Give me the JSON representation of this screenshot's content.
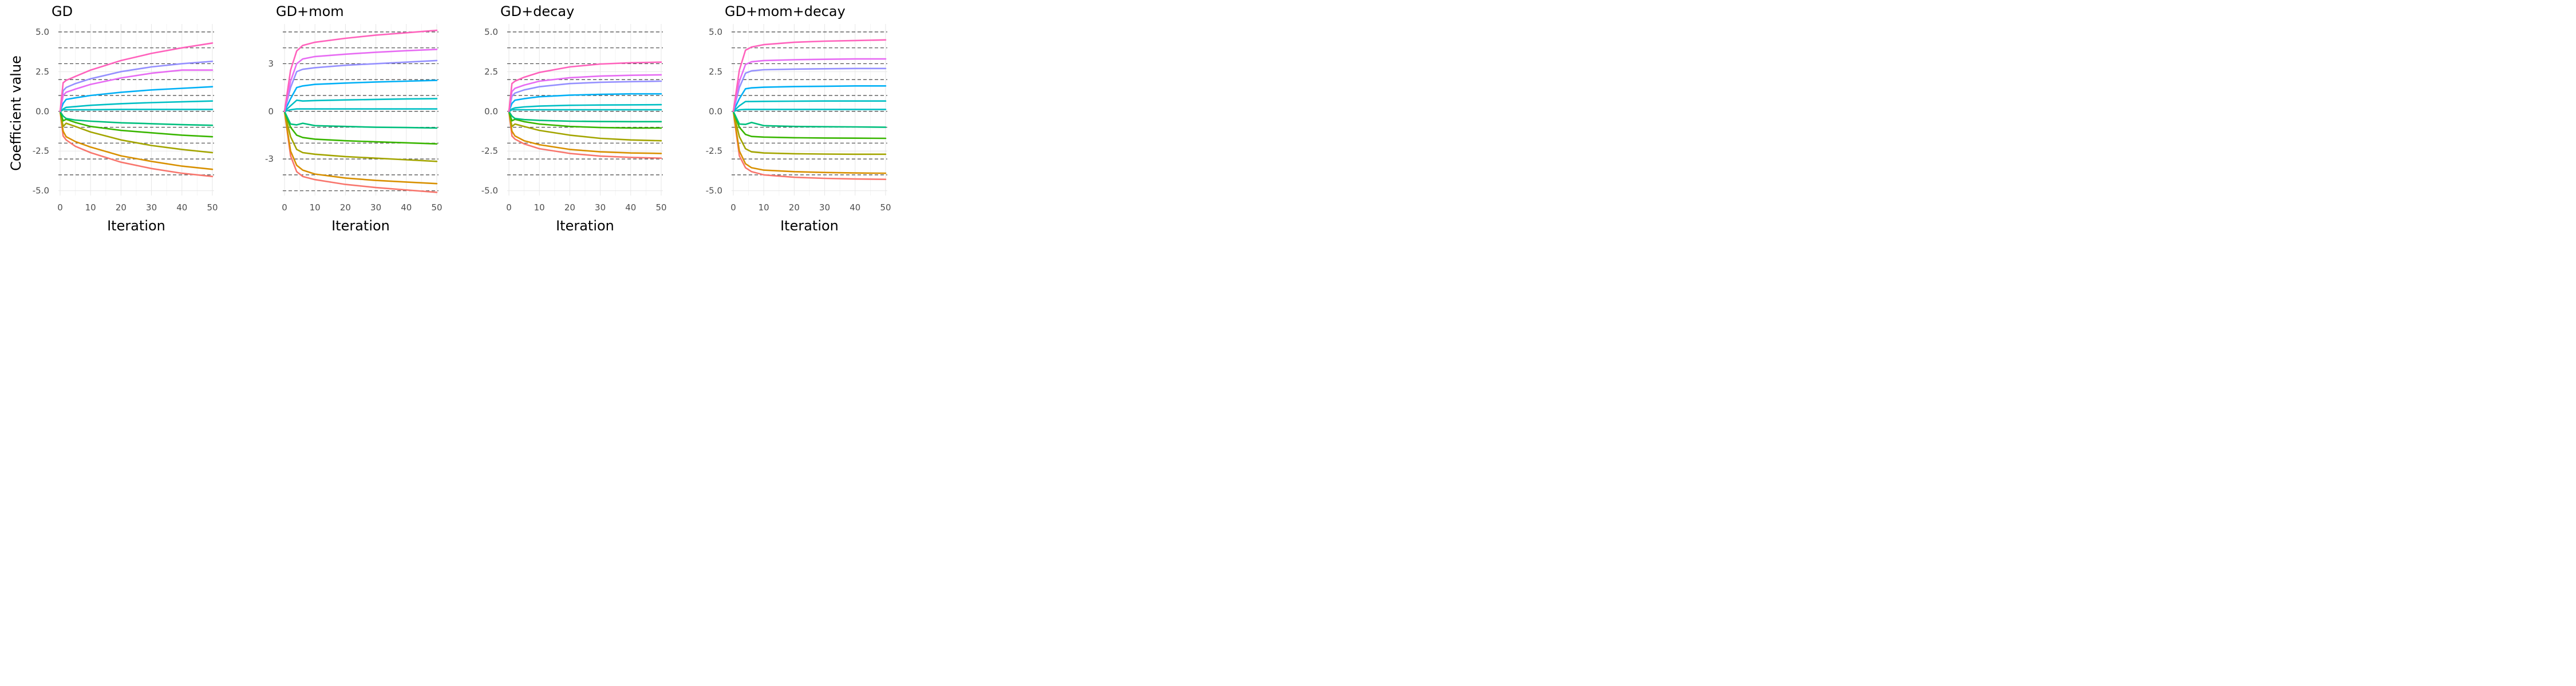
{
  "figure": {
    "ylabel": "Coefficient value",
    "xlabel": "Iteration"
  },
  "colors": [
    "#F8766D",
    "#D89000",
    "#A3A500",
    "#39B600",
    "#00BF7D",
    "#00BFC4",
    "#00B0F6",
    "#9590FF",
    "#E76BF3",
    "#FF62BC"
  ],
  "chart_data": [
    {
      "type": "line",
      "title": "GD",
      "xlabel": "Iteration",
      "ylabel": "Coefficient value",
      "xlim": [
        0,
        50
      ],
      "ylim": [
        -5.3,
        5.5
      ],
      "xticks": [
        0,
        10,
        20,
        30,
        40,
        50
      ],
      "yticks": [
        -5.0,
        -2.5,
        0.0,
        2.5,
        5.0
      ],
      "ytick_labels": [
        "-5.0",
        "-2.5",
        "0.0",
        "2.5",
        "5.0"
      ],
      "grid": true,
      "reference_lines": [
        -4,
        -3,
        -2,
        -1,
        0,
        1,
        2,
        3,
        4,
        5
      ],
      "series": [
        {
          "x": [
            0,
            1,
            2,
            5,
            10,
            20,
            30,
            40,
            50
          ],
          "values": [
            0,
            -1.55,
            -1.8,
            -2.2,
            -2.6,
            -3.2,
            -3.6,
            -3.9,
            -4.1
          ]
        },
        {
          "x": [
            0,
            1,
            2,
            5,
            10,
            20,
            30,
            40,
            50
          ],
          "values": [
            0,
            -1.25,
            -1.6,
            -1.9,
            -2.25,
            -2.8,
            -3.15,
            -3.45,
            -3.65
          ]
        },
        {
          "x": [
            0,
            1,
            2,
            5,
            10,
            20,
            30,
            40,
            50
          ],
          "values": [
            0,
            -0.95,
            -0.75,
            -0.95,
            -1.3,
            -1.8,
            -2.15,
            -2.4,
            -2.6
          ]
        },
        {
          "x": [
            0,
            1,
            2,
            5,
            10,
            20,
            30,
            40,
            50
          ],
          "values": [
            0,
            -0.6,
            -0.5,
            -0.7,
            -0.95,
            -1.2,
            -1.35,
            -1.5,
            -1.6
          ]
        },
        {
          "x": [
            0,
            1,
            2,
            5,
            10,
            20,
            30,
            40,
            50
          ],
          "values": [
            0,
            -0.3,
            -0.45,
            -0.55,
            -0.62,
            -0.72,
            -0.78,
            -0.84,
            -0.88
          ]
        },
        {
          "x": [
            0,
            1,
            2,
            5,
            10,
            20,
            30,
            40,
            50
          ],
          "values": [
            0,
            0.1,
            0.1,
            0.1,
            0.1,
            0.12,
            0.12,
            0.12,
            0.12
          ]
        },
        {
          "x": [
            0,
            1,
            2,
            5,
            10,
            20,
            30,
            40,
            50
          ],
          "values": [
            0,
            0.15,
            0.25,
            0.3,
            0.38,
            0.48,
            0.55,
            0.6,
            0.65
          ]
        },
        {
          "x": [
            0,
            1,
            2,
            5,
            10,
            20,
            30,
            40,
            50
          ],
          "values": [
            0,
            0.5,
            0.75,
            0.85,
            1.0,
            1.2,
            1.35,
            1.45,
            1.55
          ]
        },
        {
          "x": [
            0,
            1,
            2,
            5,
            10,
            20,
            30,
            40,
            50
          ],
          "values": [
            0,
            1.0,
            1.2,
            1.4,
            1.7,
            2.1,
            2.4,
            2.6,
            2.6
          ]
        },
        {
          "x": [
            0,
            1,
            2,
            5,
            10,
            20,
            30,
            40,
            50
          ],
          "values": [
            0,
            1.8,
            1.95,
            2.2,
            2.6,
            3.2,
            3.65,
            4.0,
            4.3
          ]
        }
      ],
      "series_extra": {
        "8": {
          "x": [
            0,
            1,
            2,
            5,
            10,
            20,
            30,
            40,
            50
          ],
          "values": [
            0,
            1.3,
            1.5,
            1.75,
            2.05,
            2.5,
            2.8,
            3.0,
            3.15
          ]
        }
      }
    },
    {
      "type": "line",
      "title": "GD+mom",
      "xlabel": "Iteration",
      "ylabel": "",
      "xlim": [
        0,
        50
      ],
      "ylim": [
        -5.3,
        5.5
      ],
      "xticks": [
        0,
        10,
        20,
        30,
        40,
        50
      ],
      "yticks": [
        -3,
        0,
        3
      ],
      "ytick_labels": [
        "-3",
        "0",
        "3"
      ],
      "grid": true,
      "reference_lines": [
        -5,
        -4,
        -3,
        -2,
        -1,
        0,
        1,
        2,
        3,
        4,
        5
      ],
      "series": [
        {
          "x": [
            0,
            2,
            4,
            6,
            10,
            20,
            30,
            40,
            50
          ],
          "values": [
            0,
            -2.8,
            -3.8,
            -4.1,
            -4.3,
            -4.6,
            -4.8,
            -4.95,
            -5.1
          ]
        },
        {
          "x": [
            0,
            2,
            4,
            6,
            10,
            20,
            30,
            40,
            50
          ],
          "values": [
            0,
            -2.5,
            -3.4,
            -3.7,
            -3.95,
            -4.2,
            -4.35,
            -4.45,
            -4.55
          ]
        },
        {
          "x": [
            0,
            2,
            4,
            6,
            10,
            20,
            30,
            40,
            50
          ],
          "values": [
            0,
            -1.6,
            -2.4,
            -2.6,
            -2.7,
            -2.85,
            -2.95,
            -3.05,
            -3.15
          ]
        },
        {
          "x": [
            0,
            2,
            4,
            6,
            10,
            20,
            30,
            40,
            50
          ],
          "values": [
            0,
            -1.0,
            -1.5,
            -1.65,
            -1.75,
            -1.85,
            -1.92,
            -1.98,
            -2.05
          ]
        },
        {
          "x": [
            0,
            2,
            4,
            6,
            10,
            20,
            30,
            40,
            50
          ],
          "values": [
            0,
            -0.8,
            -0.85,
            -0.75,
            -0.9,
            -0.95,
            -1.0,
            -1.02,
            -1.05
          ]
        },
        {
          "x": [
            0,
            2,
            4,
            6,
            10,
            20,
            30,
            40,
            50
          ],
          "values": [
            0,
            0.1,
            0.15,
            0.15,
            0.15,
            0.15,
            0.15,
            0.15,
            0.15
          ]
        },
        {
          "x": [
            0,
            2,
            4,
            6,
            10,
            20,
            30,
            40,
            50
          ],
          "values": [
            0,
            0.35,
            0.7,
            0.65,
            0.68,
            0.72,
            0.75,
            0.78,
            0.8
          ]
        },
        {
          "x": [
            0,
            2,
            4,
            6,
            10,
            20,
            30,
            40,
            50
          ],
          "values": [
            0,
            0.8,
            1.5,
            1.6,
            1.7,
            1.78,
            1.85,
            1.9,
            1.95
          ]
        },
        {
          "x": [
            0,
            2,
            4,
            6,
            10,
            20,
            30,
            40,
            50
          ],
          "values": [
            0,
            1.5,
            2.5,
            2.65,
            2.75,
            2.9,
            3.0,
            3.1,
            3.2
          ]
        },
        {
          "x": [
            0,
            2,
            4,
            6,
            10,
            20,
            30,
            40,
            50
          ],
          "values": [
            0,
            1.9,
            3.0,
            3.3,
            3.45,
            3.6,
            3.72,
            3.82,
            3.9
          ]
        },
        {
          "x": [
            0,
            2,
            4,
            6,
            10,
            20,
            30,
            40,
            50
          ],
          "values": [
            0,
            2.6,
            3.8,
            4.15,
            4.35,
            4.6,
            4.8,
            4.95,
            5.1
          ]
        }
      ]
    },
    {
      "type": "line",
      "title": "GD+decay",
      "xlabel": "Iteration",
      "ylabel": "",
      "xlim": [
        0,
        50
      ],
      "ylim": [
        -5.3,
        5.5
      ],
      "xticks": [
        0,
        10,
        20,
        30,
        40,
        50
      ],
      "yticks": [
        -5.0,
        -2.5,
        0.0,
        2.5,
        5.0
      ],
      "ytick_labels": [
        "-5.0",
        "-2.5",
        "0.0",
        "2.5",
        "5.0"
      ],
      "grid": true,
      "reference_lines": [
        -4,
        -3,
        -2,
        -1,
        0,
        1,
        2,
        3,
        4,
        5
      ],
      "series": [
        {
          "x": [
            0,
            1,
            2,
            5,
            10,
            20,
            30,
            40,
            50
          ],
          "values": [
            0,
            -1.55,
            -1.75,
            -2.05,
            -2.35,
            -2.65,
            -2.82,
            -2.9,
            -2.95
          ]
        },
        {
          "x": [
            0,
            1,
            2,
            5,
            10,
            20,
            30,
            40,
            50
          ],
          "values": [
            0,
            -1.25,
            -1.55,
            -1.85,
            -2.1,
            -2.4,
            -2.55,
            -2.62,
            -2.65
          ]
        },
        {
          "x": [
            0,
            1,
            2,
            5,
            10,
            20,
            30,
            40,
            50
          ],
          "values": [
            0,
            -0.95,
            -0.8,
            -0.95,
            -1.2,
            -1.5,
            -1.7,
            -1.8,
            -1.85
          ]
        },
        {
          "x": [
            0,
            1,
            2,
            5,
            10,
            20,
            30,
            40,
            50
          ],
          "values": [
            0,
            -0.6,
            -0.5,
            -0.65,
            -0.8,
            -0.95,
            -1.02,
            -1.05,
            -1.05
          ]
        },
        {
          "x": [
            0,
            1,
            2,
            5,
            10,
            20,
            30,
            40,
            50
          ],
          "values": [
            0,
            -0.3,
            -0.45,
            -0.52,
            -0.57,
            -0.62,
            -0.64,
            -0.65,
            -0.65
          ]
        },
        {
          "x": [
            0,
            1,
            2,
            5,
            10,
            20,
            30,
            40,
            50
          ],
          "values": [
            0,
            0.1,
            0.1,
            0.1,
            0.1,
            0.1,
            0.1,
            0.1,
            0.1
          ]
        },
        {
          "x": [
            0,
            1,
            2,
            5,
            10,
            20,
            30,
            40,
            50
          ],
          "values": [
            0,
            0.15,
            0.22,
            0.28,
            0.33,
            0.38,
            0.4,
            0.41,
            0.42
          ]
        },
        {
          "x": [
            0,
            1,
            2,
            5,
            10,
            20,
            30,
            40,
            50
          ],
          "values": [
            0,
            0.5,
            0.7,
            0.8,
            0.92,
            1.02,
            1.07,
            1.1,
            1.1
          ]
        },
        {
          "x": [
            0,
            1,
            2,
            5,
            10,
            20,
            30,
            40,
            50
          ],
          "values": [
            0,
            0.95,
            1.15,
            1.35,
            1.55,
            1.75,
            1.83,
            1.87,
            1.9
          ]
        },
        {
          "x": [
            0,
            1,
            2,
            5,
            10,
            20,
            30,
            40,
            50
          ],
          "values": [
            0,
            1.25,
            1.45,
            1.65,
            1.9,
            2.12,
            2.22,
            2.27,
            2.3
          ]
        },
        {
          "x": [
            0,
            1,
            2,
            5,
            10,
            20,
            30,
            40,
            50
          ],
          "values": [
            0,
            1.75,
            1.9,
            2.15,
            2.45,
            2.8,
            2.98,
            3.06,
            3.1
          ]
        }
      ]
    },
    {
      "type": "line",
      "title": "GD+mom+decay",
      "xlabel": "Iteration",
      "ylabel": "",
      "xlim": [
        0,
        50
      ],
      "ylim": [
        -5.3,
        5.5
      ],
      "xticks": [
        0,
        10,
        20,
        30,
        40,
        50
      ],
      "yticks": [
        -5.0,
        -2.5,
        0.0,
        2.5,
        5.0
      ],
      "ytick_labels": [
        "-5.0",
        "-2.5",
        "0.0",
        "2.5",
        "5.0"
      ],
      "grid": true,
      "reference_lines": [
        -4,
        -3,
        -2,
        -1,
        0,
        1,
        2,
        3,
        4,
        5
      ],
      "series": [
        {
          "x": [
            0,
            2,
            4,
            6,
            10,
            20,
            30,
            40,
            50
          ],
          "values": [
            0,
            -2.8,
            -3.55,
            -3.8,
            -4.0,
            -4.15,
            -4.22,
            -4.26,
            -4.28
          ]
        },
        {
          "x": [
            0,
            2,
            4,
            6,
            10,
            20,
            30,
            40,
            50
          ],
          "values": [
            0,
            -2.5,
            -3.3,
            -3.55,
            -3.7,
            -3.8,
            -3.85,
            -3.88,
            -3.9
          ]
        },
        {
          "x": [
            0,
            2,
            4,
            6,
            10,
            20,
            30,
            40,
            50
          ],
          "values": [
            0,
            -1.6,
            -2.35,
            -2.55,
            -2.62,
            -2.67,
            -2.69,
            -2.7,
            -2.7
          ]
        },
        {
          "x": [
            0,
            2,
            4,
            6,
            10,
            20,
            30,
            40,
            50
          ],
          "values": [
            0,
            -1.0,
            -1.45,
            -1.58,
            -1.62,
            -1.66,
            -1.68,
            -1.69,
            -1.7
          ]
        },
        {
          "x": [
            0,
            2,
            4,
            6,
            10,
            20,
            30,
            40,
            50
          ],
          "values": [
            0,
            -0.8,
            -0.82,
            -0.7,
            -0.9,
            -0.95,
            -0.97,
            -0.98,
            -1.0
          ]
        },
        {
          "x": [
            0,
            2,
            4,
            6,
            10,
            20,
            30,
            40,
            50
          ],
          "values": [
            0,
            0.1,
            0.12,
            0.12,
            0.12,
            0.12,
            0.12,
            0.12,
            0.12
          ]
        },
        {
          "x": [
            0,
            2,
            4,
            6,
            10,
            20,
            30,
            40,
            50
          ],
          "values": [
            0,
            0.35,
            0.62,
            0.62,
            0.63,
            0.64,
            0.65,
            0.65,
            0.65
          ]
        },
        {
          "x": [
            0,
            2,
            4,
            6,
            10,
            20,
            30,
            40,
            50
          ],
          "values": [
            0,
            0.8,
            1.42,
            1.48,
            1.52,
            1.56,
            1.58,
            1.6,
            1.6
          ]
        },
        {
          "x": [
            0,
            2,
            4,
            6,
            10,
            20,
            30,
            40,
            50
          ],
          "values": [
            0,
            1.5,
            2.4,
            2.55,
            2.62,
            2.66,
            2.68,
            2.7,
            2.7
          ]
        },
        {
          "x": [
            0,
            2,
            4,
            6,
            10,
            20,
            30,
            40,
            50
          ],
          "values": [
            0,
            1.9,
            2.95,
            3.12,
            3.2,
            3.25,
            3.28,
            3.3,
            3.3
          ]
        },
        {
          "x": [
            0,
            2,
            4,
            6,
            10,
            20,
            30,
            40,
            50
          ],
          "values": [
            0,
            2.6,
            3.85,
            4.05,
            4.2,
            4.35,
            4.42,
            4.46,
            4.5
          ]
        }
      ]
    }
  ]
}
